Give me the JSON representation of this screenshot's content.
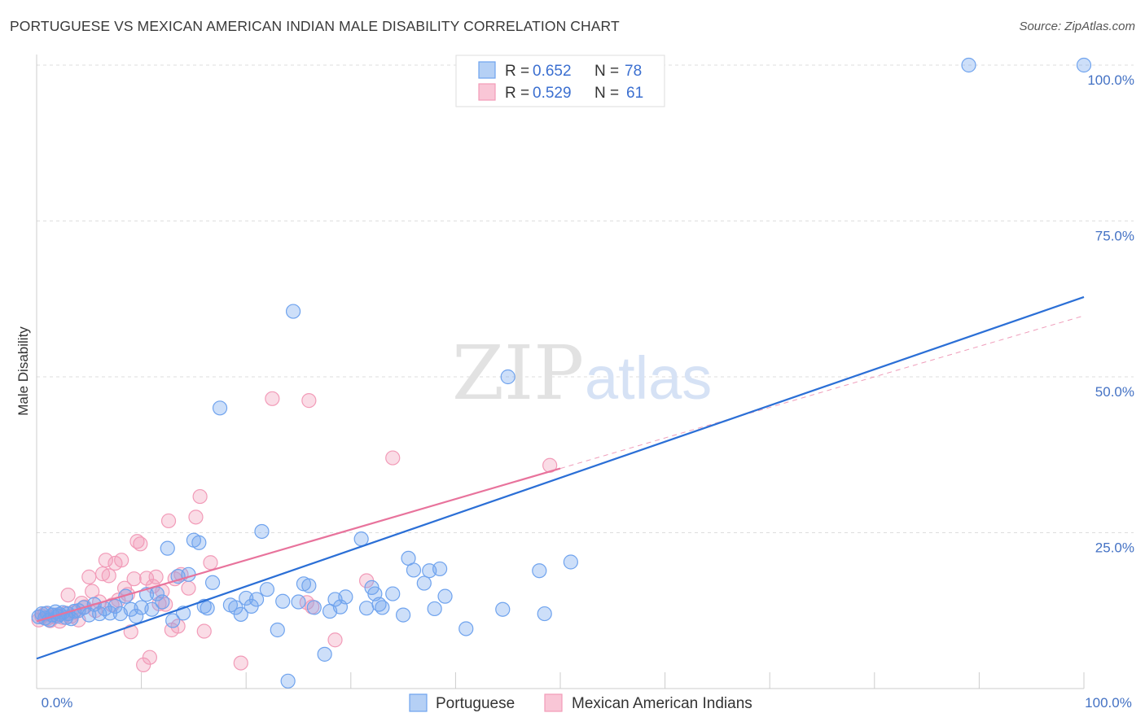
{
  "title": "PORTUGUESE VS MEXICAN AMERICAN INDIAN MALE DISABILITY CORRELATION CHART",
  "source": "Source: ZipAtlas.com",
  "watermark": {
    "zip": "ZIP",
    "atlas": "atlas"
  },
  "legend": {
    "rows": [
      {
        "r_label": "R =",
        "r_value": "0.652",
        "n_label": "N =",
        "n_value": "78"
      },
      {
        "r_label": "R =",
        "r_value": "0.529",
        "n_label": "N =",
        "n_value": "61"
      }
    ]
  },
  "chart_data": {
    "type": "scatter",
    "title": "PORTUGUESE VS MEXICAN AMERICAN INDIAN MALE DISABILITY CORRELATION CHART",
    "xlabel": "",
    "ylabel": "Male Disability",
    "xlim": [
      0,
      100
    ],
    "ylim": [
      0,
      100
    ],
    "x_tick_labels": [
      "0.0%",
      "100.0%"
    ],
    "y_ticks": [
      25,
      50,
      75,
      100
    ],
    "y_tick_labels": [
      "25.0%",
      "50.0%",
      "75.0%",
      "100.0%"
    ],
    "grid": "horizontal dashed",
    "legend_placement": "top-center",
    "colors": {
      "portuguese": "#6fa3ee",
      "mexican": "#f29bb8",
      "portuguese_line": "#2b6fd6",
      "mexican_line": "#e8739c"
    },
    "series": [
      {
        "name": "Portuguese",
        "R": 0.652,
        "N": 78,
        "trend": {
          "x": [
            0,
            100
          ],
          "y": [
            4.8,
            62.8
          ]
        },
        "points": [
          [
            0.2,
            11.5
          ],
          [
            0.5,
            12.0
          ],
          [
            0.8,
            11.3
          ],
          [
            1.0,
            12.1
          ],
          [
            1.2,
            11.0
          ],
          [
            1.5,
            11.8
          ],
          [
            1.8,
            12.3
          ],
          [
            2.0,
            11.6
          ],
          [
            2.2,
            11.9
          ],
          [
            2.5,
            12.2
          ],
          [
            2.8,
            11.4
          ],
          [
            3.0,
            12.0
          ],
          [
            3.3,
            11.2
          ],
          [
            3.6,
            12.4
          ],
          [
            4.0,
            12.5
          ],
          [
            4.5,
            13.0
          ],
          [
            5.0,
            11.8
          ],
          [
            5.5,
            13.5
          ],
          [
            6.0,
            12.0
          ],
          [
            6.5,
            12.8
          ],
          [
            7.0,
            12.1
          ],
          [
            7.5,
            13.2
          ],
          [
            8.0,
            12.0
          ],
          [
            8.5,
            14.8
          ],
          [
            9.0,
            12.7
          ],
          [
            9.5,
            11.6
          ],
          [
            10.0,
            13.0
          ],
          [
            10.5,
            15.1
          ],
          [
            11.0,
            12.7
          ],
          [
            11.5,
            15.2
          ],
          [
            12.0,
            13.9
          ],
          [
            12.5,
            22.5
          ],
          [
            13.0,
            10.9
          ],
          [
            13.5,
            18.0
          ],
          [
            14.0,
            12.1
          ],
          [
            14.5,
            18.3
          ],
          [
            15.0,
            23.8
          ],
          [
            15.5,
            23.4
          ],
          [
            16.0,
            13.2
          ],
          [
            16.3,
            12.9
          ],
          [
            16.8,
            17.0
          ],
          [
            17.5,
            45.0
          ],
          [
            18.5,
            13.4
          ],
          [
            19.0,
            13.0
          ],
          [
            19.5,
            11.9
          ],
          [
            20.0,
            14.5
          ],
          [
            20.5,
            13.2
          ],
          [
            21.0,
            14.3
          ],
          [
            21.5,
            25.2
          ],
          [
            22.0,
            15.9
          ],
          [
            23.0,
            9.4
          ],
          [
            23.5,
            14.0
          ],
          [
            24.0,
            1.2
          ],
          [
            24.5,
            60.5
          ],
          [
            25.0,
            13.9
          ],
          [
            25.5,
            16.8
          ],
          [
            26.0,
            16.5
          ],
          [
            26.5,
            13.0
          ],
          [
            27.5,
            5.5
          ],
          [
            28.0,
            12.4
          ],
          [
            28.5,
            14.3
          ],
          [
            29.0,
            13.1
          ],
          [
            29.5,
            14.7
          ],
          [
            31.0,
            24.0
          ],
          [
            31.5,
            12.9
          ],
          [
            32.0,
            16.2
          ],
          [
            32.3,
            15.2
          ],
          [
            32.7,
            13.5
          ],
          [
            33.0,
            13.0
          ],
          [
            34.0,
            15.2
          ],
          [
            35.0,
            11.8
          ],
          [
            35.5,
            20.9
          ],
          [
            36.0,
            19.0
          ],
          [
            37.0,
            16.9
          ],
          [
            37.5,
            18.9
          ],
          [
            38.0,
            12.8
          ],
          [
            38.5,
            19.2
          ],
          [
            39.0,
            14.8
          ],
          [
            41.0,
            9.6
          ],
          [
            44.5,
            12.7
          ],
          [
            45.0,
            50.0
          ],
          [
            48.0,
            18.9
          ],
          [
            48.5,
            12.0
          ],
          [
            51.0,
            20.3
          ],
          [
            89.0,
            100.0
          ],
          [
            100.0,
            100.0
          ]
        ]
      },
      {
        "name": "Mexican American Indians",
        "R": 0.529,
        "N": 61,
        "trend": {
          "x": [
            0,
            50
          ],
          "y": [
            10.8,
            35.3
          ]
        },
        "trend_extension": {
          "x": [
            50,
            100
          ],
          "y": [
            35.3,
            59.8
          ]
        },
        "points": [
          [
            0.2,
            11.0
          ],
          [
            0.5,
            11.6
          ],
          [
            0.8,
            12.0
          ],
          [
            1.0,
            11.2
          ],
          [
            1.3,
            10.9
          ],
          [
            1.6,
            11.5
          ],
          [
            1.9,
            11.8
          ],
          [
            2.2,
            10.8
          ],
          [
            2.5,
            11.4
          ],
          [
            2.8,
            12.1
          ],
          [
            3.0,
            15.0
          ],
          [
            3.3,
            11.6
          ],
          [
            3.6,
            12.2
          ],
          [
            4.0,
            11.0
          ],
          [
            4.3,
            13.7
          ],
          [
            4.6,
            13.1
          ],
          [
            5.0,
            17.9
          ],
          [
            5.3,
            15.6
          ],
          [
            5.6,
            12.5
          ],
          [
            6.0,
            13.9
          ],
          [
            6.3,
            18.4
          ],
          [
            6.6,
            20.6
          ],
          [
            6.9,
            18.1
          ],
          [
            7.2,
            13.4
          ],
          [
            7.5,
            20.1
          ],
          [
            7.8,
            14.2
          ],
          [
            8.1,
            20.6
          ],
          [
            8.4,
            16.1
          ],
          [
            8.7,
            15.1
          ],
          [
            9.0,
            9.1
          ],
          [
            9.3,
            17.6
          ],
          [
            9.6,
            23.6
          ],
          [
            9.9,
            23.2
          ],
          [
            10.2,
            3.8
          ],
          [
            10.5,
            17.7
          ],
          [
            10.8,
            5.0
          ],
          [
            11.1,
            16.4
          ],
          [
            11.4,
            17.9
          ],
          [
            11.7,
            13.6
          ],
          [
            12.0,
            15.6
          ],
          [
            12.3,
            13.5
          ],
          [
            12.6,
            26.9
          ],
          [
            12.9,
            9.4
          ],
          [
            13.2,
            17.6
          ],
          [
            13.5,
            10.0
          ],
          [
            13.8,
            18.3
          ],
          [
            14.5,
            16.1
          ],
          [
            15.2,
            27.5
          ],
          [
            15.6,
            30.8
          ],
          [
            16.0,
            9.2
          ],
          [
            16.6,
            20.2
          ],
          [
            19.5,
            4.1
          ],
          [
            22.5,
            46.5
          ],
          [
            25.8,
            13.8
          ],
          [
            26.0,
            46.2
          ],
          [
            26.3,
            13.1
          ],
          [
            28.5,
            7.8
          ],
          [
            31.5,
            17.3
          ],
          [
            34.0,
            37.0
          ],
          [
            49.0,
            35.8
          ]
        ]
      }
    ]
  },
  "bottom_legend": [
    {
      "label": "Portuguese"
    },
    {
      "label": "Mexican American Indians"
    }
  ]
}
